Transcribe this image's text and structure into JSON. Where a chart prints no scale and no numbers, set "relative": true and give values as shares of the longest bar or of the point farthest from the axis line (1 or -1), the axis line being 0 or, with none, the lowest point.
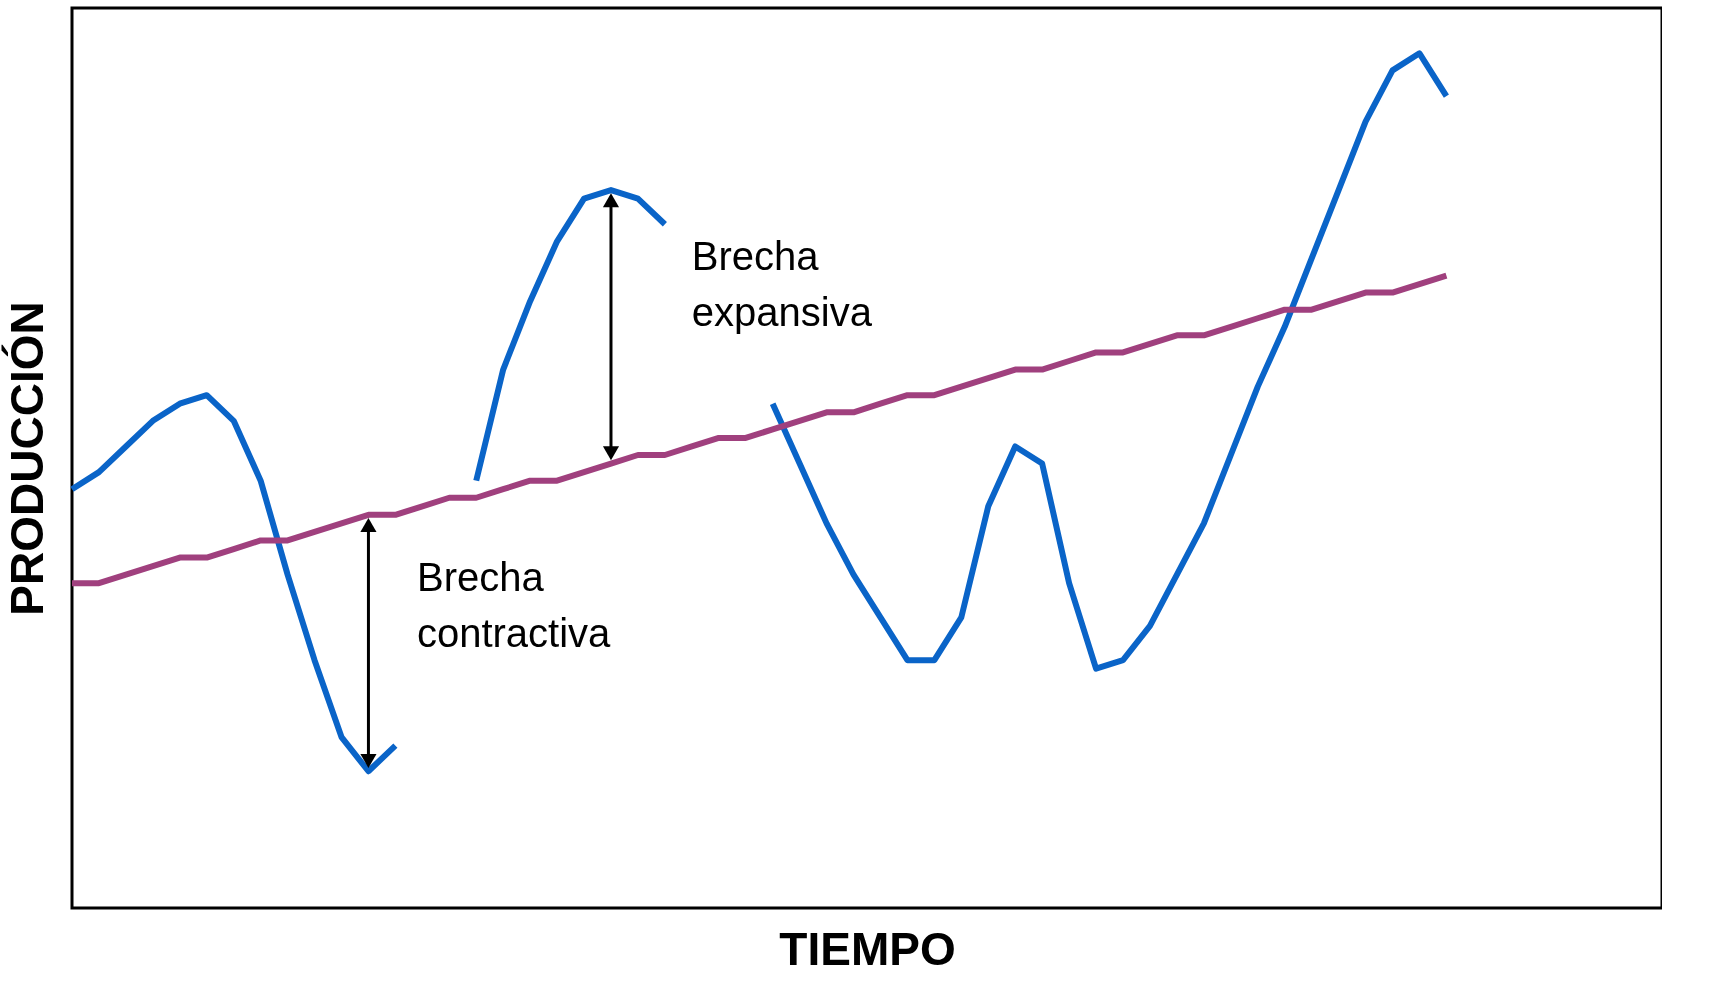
{
  "chart_data": {
    "type": "line",
    "relative": true,
    "xlabel": "TIEMPO",
    "ylabel": "PRODUCCIÓN",
    "categories": [
      null,
      null,
      null,
      null,
      null,
      null,
      null,
      null,
      null,
      null,
      null,
      null,
      null,
      null,
      null,
      null,
      null,
      null,
      null,
      null,
      null,
      null,
      null,
      null,
      null,
      null,
      null,
      null,
      null,
      null,
      null,
      null,
      null,
      null,
      null,
      null,
      null,
      null,
      null,
      null,
      null,
      null,
      null,
      null,
      null,
      null,
      null,
      null,
      null,
      null,
      null,
      null,
      null,
      null,
      null,
      null,
      null,
      null,
      null,
      null
    ],
    "series": [
      {
        "color": "#0a64c8",
        "values": [
          0.49,
          0.51,
          0.54,
          0.57,
          0.59,
          0.6,
          0.57,
          0.5,
          0.39,
          0.29,
          0.2,
          0.16,
          0.19,
          null,
          null,
          0.5,
          0.63,
          0.71,
          0.78,
          0.83,
          0.84,
          0.83,
          0.8,
          null,
          null,
          null,
          0.59,
          0.52,
          0.45,
          0.39,
          0.34,
          0.29,
          0.29,
          0.34,
          0.47,
          0.54,
          0.52,
          0.38,
          0.28,
          0.29,
          0.33,
          0.39,
          0.45,
          0.53,
          0.61,
          0.68,
          0.76,
          0.84,
          0.92,
          0.98,
          1.0,
          0.95,
          null,
          null,
          null,
          null,
          null,
          null,
          null,
          null
        ]
      },
      {
        "color": "#a0407e",
        "values": [
          0.38,
          0.38,
          0.39,
          0.4,
          0.41,
          0.41,
          0.42,
          0.43,
          0.43,
          0.44,
          0.45,
          0.46,
          0.46,
          0.47,
          0.48,
          0.48,
          0.49,
          0.5,
          0.5,
          0.51,
          0.52,
          0.53,
          0.53,
          0.54,
          0.55,
          0.55,
          0.56,
          0.57,
          0.58,
          0.58,
          0.59,
          0.6,
          0.6,
          0.61,
          0.62,
          0.63,
          0.63,
          0.64,
          0.65,
          0.65,
          0.66,
          0.67,
          0.67,
          0.68,
          0.69,
          0.7,
          0.7,
          0.71,
          0.72,
          0.72,
          0.73,
          0.74,
          null,
          null,
          null,
          null,
          null,
          null,
          null,
          null
        ]
      }
    ],
    "annotations": [
      "Brecha expansiva",
      "Brecha contractiva"
    ]
  }
}
